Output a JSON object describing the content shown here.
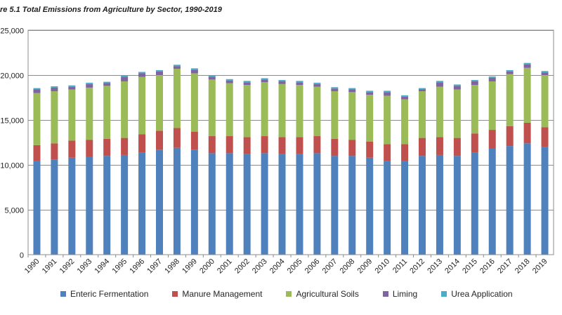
{
  "chart_data": {
    "type": "bar",
    "stacked": true,
    "title": "re 5.1 Total Emissions from Agriculture by Sector, 1990-2019",
    "xlabel": "",
    "ylabel": "",
    "ylim": [
      0,
      25000
    ],
    "yticks": [
      0,
      5000,
      10000,
      15000,
      20000,
      25000
    ],
    "ytick_labels": [
      "0",
      "5,000",
      "10,000",
      "15,000",
      "20,000",
      "25,000"
    ],
    "grid": true,
    "legend_position": "bottom",
    "categories": [
      "1990",
      "1991",
      "1992",
      "1993",
      "1994",
      "1995",
      "1996",
      "1997",
      "1998",
      "1999",
      "2000",
      "2001",
      "2002",
      "2003",
      "2004",
      "2005",
      "2006",
      "2007",
      "2008",
      "2009",
      "2010",
      "2011",
      "2012",
      "2013",
      "2014",
      "2015",
      "2016",
      "2017",
      "2018",
      "2019"
    ],
    "series": [
      {
        "name": "Enteric Fermentation",
        "color": "#4f81bd",
        "values": [
          10400,
          10600,
          10800,
          10900,
          11000,
          11100,
          11400,
          11700,
          11900,
          11700,
          11300,
          11300,
          11200,
          11300,
          11200,
          11200,
          11300,
          11000,
          11000,
          10800,
          10400,
          10400,
          11000,
          11100,
          11000,
          11400,
          11800,
          12100,
          12400,
          12000
        ]
      },
      {
        "name": "Manure Management",
        "color": "#c0504d",
        "values": [
          1800,
          1800,
          1900,
          1900,
          1900,
          1900,
          2000,
          2100,
          2200,
          2000,
          1900,
          1900,
          1900,
          1900,
          1900,
          1900,
          1900,
          1900,
          1800,
          1800,
          1900,
          1900,
          2000,
          2000,
          2000,
          2100,
          2100,
          2200,
          2300,
          2200
        ]
      },
      {
        "name": "Agricultural Soils",
        "color": "#9bbb59",
        "values": [
          5800,
          5800,
          5700,
          5800,
          5900,
          6300,
          6400,
          6200,
          6600,
          6500,
          6300,
          5900,
          5800,
          6000,
          5900,
          5800,
          5500,
          5300,
          5300,
          5200,
          5400,
          5000,
          5200,
          5600,
          5400,
          5400,
          5400,
          5800,
          6100,
          5800
        ]
      },
      {
        "name": "Liming",
        "color": "#8064a2",
        "values": [
          400,
          400,
          300,
          400,
          300,
          500,
          400,
          400,
          300,
          400,
          300,
          300,
          300,
          300,
          300,
          300,
          300,
          300,
          300,
          300,
          400,
          300,
          200,
          500,
          400,
          400,
          400,
          300,
          400,
          300
        ]
      },
      {
        "name": "Urea Application",
        "color": "#4bacc6",
        "values": [
          150,
          150,
          150,
          150,
          150,
          150,
          150,
          150,
          150,
          150,
          150,
          150,
          150,
          150,
          150,
          150,
          150,
          150,
          150,
          150,
          150,
          150,
          150,
          150,
          150,
          150,
          150,
          150,
          150,
          150
        ]
      }
    ]
  }
}
